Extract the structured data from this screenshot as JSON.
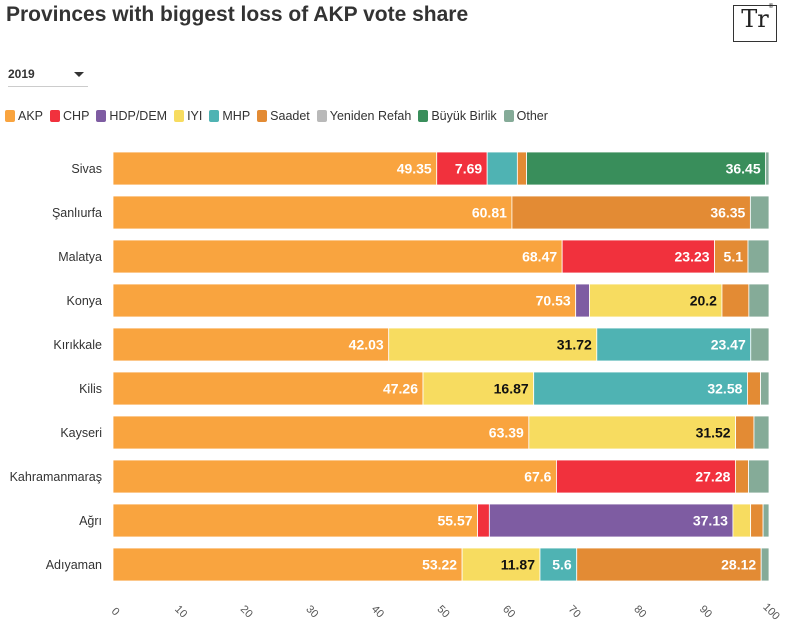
{
  "title": "Provinces with biggest loss of AKP vote share",
  "logo": {
    "mark": "Tr",
    "sub": "Turkey Recap"
  },
  "year_select": {
    "value": "2019"
  },
  "colors": {
    "AKP": "#f9a43f",
    "CHP": "#f1313d",
    "HDP/DEM": "#7e5ca2",
    "IYI": "#f7dc60",
    "MHP": "#4fb3b3",
    "Saadet": "#e38b34",
    "Yeniden Refah": "#b9b9b9",
    "Büyük Birlik": "#398e5b",
    "Other": "#85ab98"
  },
  "chart_data": {
    "type": "bar",
    "orientation": "horizontal",
    "stacked": true,
    "title": "Provinces with biggest loss of AKP vote share",
    "xlim": [
      0,
      100
    ],
    "xticks": [
      0,
      10,
      20,
      30,
      40,
      50,
      60,
      70,
      80,
      90,
      100
    ],
    "legend": "top",
    "grid": false,
    "categories": [
      "Sivas",
      "Şanlıurfa",
      "Malatya",
      "Konya",
      "Kırıkkale",
      "Kilis",
      "Kayseri",
      "Kahramanmaraş",
      "Ağrı",
      "Adıyaman"
    ],
    "series": [
      {
        "name": "AKP",
        "values": [
          49.35,
          60.81,
          68.47,
          70.53,
          42.03,
          47.26,
          63.39,
          67.6,
          55.57,
          53.22
        ]
      },
      {
        "name": "CHP",
        "values": [
          7.69,
          0,
          23.23,
          0,
          0,
          0,
          0,
          27.28,
          1.8,
          0
        ]
      },
      {
        "name": "HDP/DEM",
        "values": [
          0,
          0,
          0,
          2.1,
          0,
          0,
          0,
          0,
          37.13,
          0
        ]
      },
      {
        "name": "IYI",
        "values": [
          0,
          0,
          0,
          20.2,
          31.72,
          16.87,
          31.52,
          0,
          2.7,
          11.87
        ]
      },
      {
        "name": "MHP",
        "values": [
          4.6,
          0,
          0,
          0,
          23.47,
          32.58,
          0,
          0,
          0,
          5.6
        ]
      },
      {
        "name": "Saadet",
        "values": [
          1.4,
          36.35,
          5.1,
          4.1,
          0,
          2.0,
          2.8,
          2.0,
          1.9,
          28.12
        ]
      },
      {
        "name": "Yeniden Refah",
        "values": [
          0,
          0,
          0,
          0,
          0,
          0,
          0,
          0,
          0,
          0
        ]
      },
      {
        "name": "Büyük Birlik",
        "values": [
          36.45,
          0,
          0,
          0,
          0,
          0,
          0,
          0,
          0,
          0
        ]
      },
      {
        "name": "Other",
        "values": [
          0.51,
          2.84,
          3.2,
          3.07,
          2.78,
          1.29,
          2.29,
          3.12,
          0.9,
          1.19
        ]
      }
    ],
    "data_label_min": 5
  }
}
